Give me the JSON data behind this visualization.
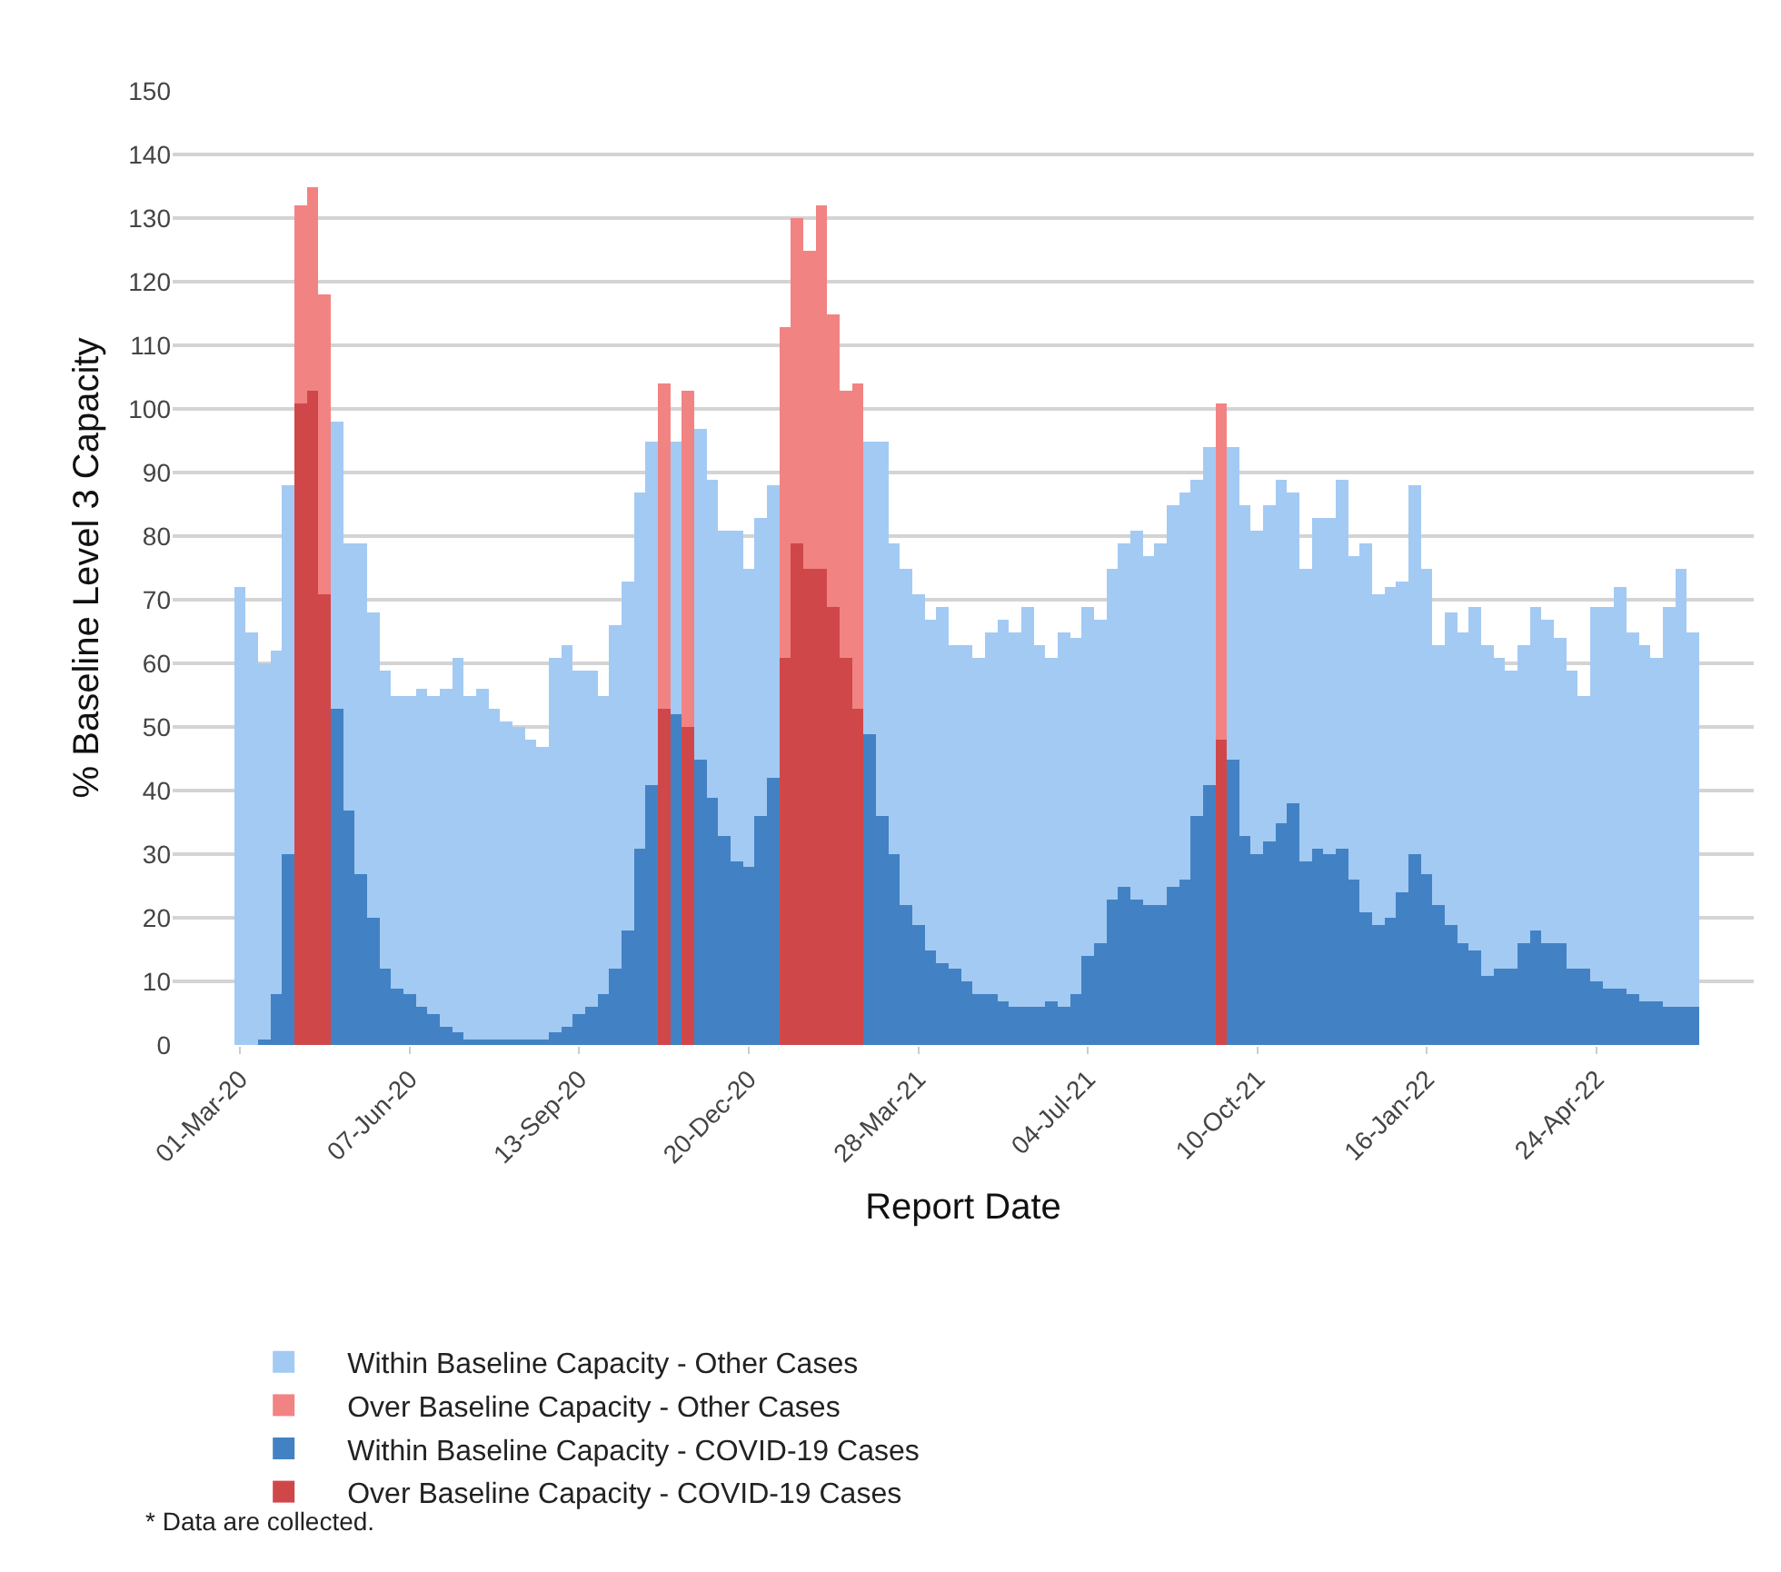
{
  "chart_data": {
    "type": "bar",
    "stacked": true,
    "xlabel": "Report Date",
    "ylabel": "% Baseline Level 3 Capacity",
    "x": [
      "2020-03-01",
      "2020-03-08",
      "2020-03-15",
      "2020-03-22",
      "2020-03-29",
      "2020-04-05",
      "2020-04-12",
      "2020-04-19",
      "2020-04-26",
      "2020-05-03",
      "2020-05-10",
      "2020-05-17",
      "2020-05-24",
      "2020-05-31",
      "2020-06-07",
      "2020-06-14",
      "2020-06-21",
      "2020-06-28",
      "2020-07-05",
      "2020-07-12",
      "2020-07-19",
      "2020-07-26",
      "2020-08-02",
      "2020-08-09",
      "2020-08-16",
      "2020-08-23",
      "2020-08-30",
      "2020-09-06",
      "2020-09-13",
      "2020-09-20",
      "2020-09-27",
      "2020-10-04",
      "2020-10-11",
      "2020-10-18",
      "2020-10-25",
      "2020-11-01",
      "2020-11-08",
      "2020-11-15",
      "2020-11-22",
      "2020-11-29",
      "2020-12-06",
      "2020-12-13",
      "2020-12-20",
      "2020-12-27",
      "2021-01-03",
      "2021-01-10",
      "2021-01-17",
      "2021-01-24",
      "2021-01-31",
      "2021-02-07",
      "2021-02-14",
      "2021-02-21",
      "2021-02-28",
      "2021-03-07",
      "2021-03-14",
      "2021-03-21",
      "2021-03-28",
      "2021-04-04",
      "2021-04-11",
      "2021-04-18",
      "2021-04-25",
      "2021-05-02",
      "2021-05-09",
      "2021-05-16",
      "2021-05-23",
      "2021-05-30",
      "2021-06-06",
      "2021-06-13",
      "2021-06-20",
      "2021-06-27",
      "2021-07-04",
      "2021-07-11",
      "2021-07-18",
      "2021-07-25",
      "2021-08-01",
      "2021-08-08",
      "2021-08-15",
      "2021-08-22",
      "2021-08-29",
      "2021-09-05",
      "2021-09-12",
      "2021-09-19",
      "2021-09-26",
      "2021-10-03",
      "2021-10-10",
      "2021-10-17",
      "2021-10-24",
      "2021-10-31",
      "2021-11-07",
      "2021-11-14",
      "2021-11-21",
      "2021-11-28",
      "2021-12-05",
      "2021-12-12",
      "2021-12-19",
      "2021-12-26",
      "2022-01-02",
      "2022-01-09",
      "2022-01-16",
      "2022-01-23",
      "2022-01-30",
      "2022-02-06",
      "2022-02-13",
      "2022-02-20",
      "2022-02-27",
      "2022-03-06",
      "2022-03-13",
      "2022-03-20",
      "2022-03-27",
      "2022-04-03",
      "2022-04-10",
      "2022-04-17",
      "2022-04-24",
      "2022-05-01",
      "2022-05-08",
      "2022-05-15",
      "2022-05-22",
      "2022-05-29",
      "2022-06-05",
      "2022-06-12",
      "2022-06-19"
    ],
    "series": [
      {
        "name": "Within Baseline Capacity - COVID-19 Cases",
        "color": "#4282c4",
        "values": [
          0,
          0,
          1,
          8,
          30,
          null,
          null,
          null,
          53,
          37,
          27,
          20,
          12,
          9,
          8,
          6,
          5,
          3,
          2,
          1,
          1,
          1,
          1,
          1,
          1,
          1,
          2,
          3,
          5,
          6,
          8,
          12,
          18,
          31,
          41,
          null,
          52,
          null,
          45,
          39,
          33,
          29,
          28,
          36,
          42,
          null,
          null,
          null,
          null,
          null,
          null,
          null,
          49,
          36,
          30,
          22,
          19,
          15,
          13,
          12,
          10,
          8,
          8,
          7,
          6,
          6,
          6,
          7,
          6,
          8,
          14,
          16,
          23,
          25,
          23,
          22,
          22,
          25,
          26,
          36,
          41,
          null,
          45,
          33,
          30,
          32,
          35,
          38,
          29,
          31,
          30,
          31,
          26,
          21,
          19,
          20,
          24,
          30,
          27,
          22,
          19,
          16,
          15,
          11,
          12,
          12,
          16,
          18,
          16,
          16,
          12,
          12,
          10,
          9,
          9,
          8,
          7,
          7,
          6,
          6,
          6
        ]
      },
      {
        "name": "Over Baseline Capacity - COVID-19 Cases",
        "color": "#d0474a",
        "values": [
          null,
          null,
          null,
          null,
          null,
          101,
          103,
          71,
          null,
          null,
          null,
          null,
          null,
          null,
          null,
          null,
          null,
          null,
          null,
          null,
          null,
          null,
          null,
          null,
          null,
          null,
          null,
          null,
          null,
          null,
          null,
          null,
          null,
          null,
          null,
          53,
          null,
          50,
          null,
          null,
          null,
          null,
          null,
          null,
          null,
          61,
          79,
          75,
          75,
          69,
          61,
          53,
          null,
          null,
          null,
          null,
          null,
          null,
          null,
          null,
          null,
          null,
          null,
          null,
          null,
          null,
          null,
          null,
          null,
          null,
          null,
          null,
          null,
          null,
          null,
          null,
          null,
          null,
          null,
          null,
          null,
          48,
          null,
          null,
          null,
          null,
          null,
          null,
          null,
          null,
          null,
          null,
          null,
          null,
          null,
          null,
          null,
          null,
          null,
          null,
          null,
          null,
          null,
          null,
          null,
          null,
          null,
          null,
          null,
          null,
          null,
          null,
          null,
          null,
          null,
          null,
          null,
          null,
          null,
          null,
          null
        ]
      },
      {
        "name": "Within Baseline Capacity - Other Cases",
        "color": "#a3caf3",
        "values": [
          72,
          65,
          59,
          54,
          58,
          null,
          null,
          null,
          45,
          42,
          52,
          48,
          47,
          46,
          47,
          50,
          50,
          53,
          59,
          54,
          55,
          52,
          50,
          49,
          47,
          46,
          59,
          60,
          54,
          53,
          47,
          54,
          55,
          56,
          54,
          null,
          43,
          null,
          52,
          50,
          48,
          52,
          47,
          47,
          46,
          null,
          null,
          null,
          null,
          null,
          null,
          null,
          46,
          59,
          49,
          53,
          52,
          52,
          56,
          51,
          53,
          53,
          57,
          60,
          59,
          63,
          57,
          54,
          59,
          56,
          55,
          51,
          52,
          54,
          58,
          55,
          57,
          60,
          61,
          53,
          53,
          null,
          49,
          52,
          51,
          53,
          54,
          49,
          46,
          52,
          53,
          58,
          51,
          58,
          52,
          52,
          49,
          58,
          48,
          41,
          49,
          49,
          54,
          52,
          49,
          47,
          47,
          51,
          51,
          48,
          47,
          43,
          59,
          60,
          63,
          57,
          56,
          54,
          63,
          69,
          59
        ]
      },
      {
        "name": "Over Baseline Capacity - Other Cases",
        "color": "#f28383",
        "values": [
          null,
          null,
          null,
          null,
          null,
          31,
          32,
          47,
          null,
          null,
          null,
          null,
          null,
          null,
          null,
          null,
          null,
          null,
          null,
          null,
          null,
          null,
          null,
          null,
          null,
          null,
          null,
          null,
          null,
          null,
          null,
          null,
          null,
          null,
          null,
          51,
          null,
          53,
          null,
          null,
          null,
          null,
          null,
          null,
          null,
          52,
          51,
          50,
          57,
          46,
          42,
          51,
          null,
          null,
          null,
          null,
          null,
          null,
          null,
          null,
          null,
          null,
          null,
          null,
          null,
          null,
          null,
          null,
          null,
          null,
          null,
          null,
          null,
          null,
          null,
          null,
          null,
          null,
          null,
          null,
          null,
          53,
          null,
          null,
          null,
          null,
          null,
          null,
          null,
          null,
          null,
          null,
          null,
          null,
          null,
          null,
          null,
          null,
          null,
          null,
          null,
          null,
          null,
          null,
          null,
          null,
          null,
          null,
          null,
          null,
          null,
          null,
          null,
          null,
          null,
          null,
          null,
          null,
          null,
          null,
          null
        ]
      }
    ],
    "xlim": [
      "2020-01-22",
      "2022-07-24"
    ],
    "xticks": [
      {
        "value": "2020-03-01",
        "label": "01-Mar-20"
      },
      {
        "value": "2020-06-07",
        "label": "07-Jun-20"
      },
      {
        "value": "2020-09-13",
        "label": "13-Sep-20"
      },
      {
        "value": "2020-12-20",
        "label": "20-Dec-20"
      },
      {
        "value": "2021-03-28",
        "label": "28-Mar-21"
      },
      {
        "value": "2021-07-04",
        "label": "04-Jul-21"
      },
      {
        "value": "2021-10-10",
        "label": "10-Oct-21"
      },
      {
        "value": "2022-01-16",
        "label": "16-Jan-22"
      },
      {
        "value": "2022-04-24",
        "label": "24-Apr-22"
      }
    ],
    "ylim": [
      0,
      150
    ],
    "yticks": [
      0,
      10,
      20,
      30,
      40,
      50,
      60,
      70,
      80,
      90,
      100,
      110,
      120,
      130,
      140,
      150
    ],
    "grid": "y",
    "legend": "bottom",
    "annotations": [
      "* Data are collected."
    ]
  }
}
